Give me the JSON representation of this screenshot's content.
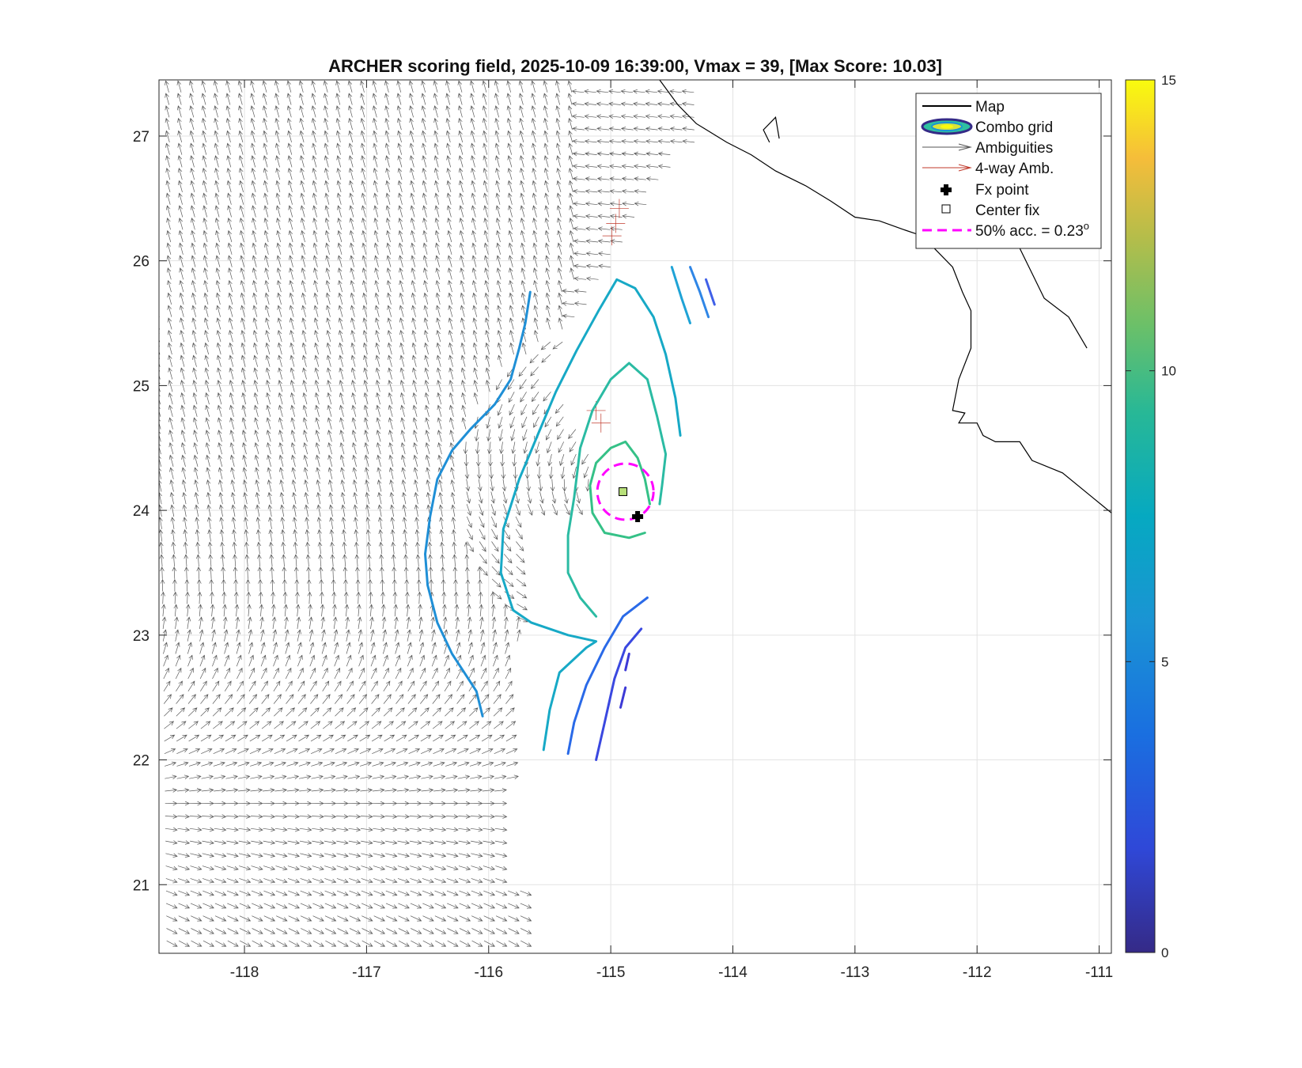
{
  "chart_data": {
    "type": "contour",
    "title": "ARCHER scoring field, 2025-10-09 16:39:00, Vmax = 39, [Max Score: 10.03]",
    "xlim": [
      -118.7,
      -110.9
    ],
    "ylim": [
      20.45,
      27.45
    ],
    "x_ticks": [
      -118,
      -117,
      -116,
      -115,
      -114,
      -113,
      -112,
      -111
    ],
    "y_ticks": [
      21,
      22,
      23,
      24,
      25,
      26,
      27
    ],
    "x_tick_labels": [
      "-118",
      "-117",
      "-116",
      "-115",
      "-114",
      "-113",
      "-112",
      "-111"
    ],
    "y_tick_labels": [
      "21",
      "22",
      "23",
      "24",
      "25",
      "26",
      "27"
    ],
    "grid": true,
    "colorbar": {
      "min": 0,
      "max": 15,
      "ticks": [
        0,
        5,
        10,
        15
      ],
      "tick_labels": [
        "0",
        "5",
        "10",
        "15"
      ]
    },
    "legend": {
      "placement": "top-right",
      "entries": [
        "Map",
        "Combo grid",
        "Ambiguities",
        "4-way Amb.",
        "Fx point",
        "Center fix",
        "50% acc. = 0.23"
      ],
      "superscript": "o"
    },
    "center_fix": {
      "lon": -114.9,
      "lat": 24.15
    },
    "fx_point": {
      "lon": -114.78,
      "lat": 23.95
    },
    "accuracy_circle": {
      "lon": -114.88,
      "lat": 24.15,
      "radius_deg": 0.23
    },
    "contours": [
      {
        "level": 4.2,
        "color": "#1f8fd6",
        "points": [
          [
            -116.05,
            22.35
          ],
          [
            -116.1,
            22.55
          ],
          [
            -116.2,
            22.7
          ],
          [
            -116.3,
            22.85
          ],
          [
            -116.42,
            23.1
          ],
          [
            -116.5,
            23.4
          ],
          [
            -116.52,
            23.65
          ],
          [
            -116.48,
            23.95
          ],
          [
            -116.42,
            24.25
          ],
          [
            -116.3,
            24.48
          ],
          [
            -116.15,
            24.65
          ],
          [
            -115.95,
            24.85
          ],
          [
            -115.82,
            25.05
          ],
          [
            -115.75,
            25.3
          ],
          [
            -115.7,
            25.5
          ],
          [
            -115.66,
            25.75
          ]
        ]
      },
      {
        "level": 6.5,
        "color": "#17a9c6",
        "points": [
          [
            -115.55,
            22.08
          ],
          [
            -115.5,
            22.4
          ],
          [
            -115.42,
            22.7
          ],
          [
            -115.2,
            22.9
          ],
          [
            -115.12,
            22.95
          ],
          [
            -115.35,
            23.0
          ],
          [
            -115.65,
            23.1
          ],
          [
            -115.8,
            23.2
          ],
          [
            -115.9,
            23.5
          ],
          [
            -115.88,
            23.85
          ],
          [
            -115.75,
            24.25
          ],
          [
            -115.6,
            24.6
          ],
          [
            -115.45,
            24.95
          ],
          [
            -115.28,
            25.28
          ],
          [
            -115.1,
            25.6
          ],
          [
            -114.95,
            25.85
          ],
          [
            -114.8,
            25.78
          ],
          [
            -114.65,
            25.55
          ],
          [
            -114.55,
            25.25
          ],
          [
            -114.47,
            24.9
          ],
          [
            -114.43,
            24.6
          ]
        ]
      },
      {
        "level": 8.0,
        "color": "#2bbba3",
        "points": [
          [
            -115.12,
            23.15
          ],
          [
            -115.25,
            23.3
          ],
          [
            -115.35,
            23.5
          ],
          [
            -115.35,
            23.8
          ],
          [
            -115.3,
            24.1
          ],
          [
            -115.25,
            24.5
          ],
          [
            -115.15,
            24.8
          ],
          [
            -115.0,
            25.05
          ],
          [
            -114.85,
            25.18
          ],
          [
            -114.7,
            25.05
          ],
          [
            -114.62,
            24.75
          ],
          [
            -114.55,
            24.45
          ],
          [
            -114.58,
            24.2
          ],
          [
            -114.6,
            24.05
          ]
        ]
      },
      {
        "level": 9.2,
        "color": "#35c187",
        "points": [
          [
            -114.72,
            23.82
          ],
          [
            -114.85,
            23.78
          ],
          [
            -115.05,
            23.82
          ],
          [
            -115.15,
            23.98
          ],
          [
            -115.17,
            24.2
          ],
          [
            -115.12,
            24.38
          ],
          [
            -115.0,
            24.5
          ],
          [
            -114.88,
            24.55
          ],
          [
            -114.78,
            24.42
          ],
          [
            -114.72,
            24.25
          ],
          [
            -114.68,
            24.05
          ]
        ]
      },
      {
        "level": 3.4,
        "color": "#2a6ae8",
        "points": [
          [
            -115.35,
            22.05
          ],
          [
            -115.3,
            22.3
          ],
          [
            -115.2,
            22.6
          ],
          [
            -115.05,
            22.9
          ],
          [
            -114.9,
            23.15
          ],
          [
            -114.7,
            23.3
          ]
        ]
      },
      {
        "level": 2.5,
        "color": "#3a48e0",
        "points": [
          [
            -115.12,
            22.0
          ],
          [
            -115.05,
            22.3
          ],
          [
            -114.97,
            22.65
          ],
          [
            -114.88,
            22.9
          ],
          [
            -114.75,
            23.05
          ]
        ]
      },
      {
        "level": 1.6,
        "color": "#3d3ad6",
        "points": [
          [
            -114.92,
            22.42
          ],
          [
            -114.88,
            22.58
          ]
        ]
      },
      {
        "level": 1.6,
        "color": "#3d3ad6",
        "points": [
          [
            -114.88,
            22.72
          ],
          [
            -114.85,
            22.85
          ]
        ]
      },
      {
        "level": 5.2,
        "color": "#1fa3d6",
        "points": [
          [
            -114.5,
            25.95
          ],
          [
            -114.42,
            25.7
          ],
          [
            -114.35,
            25.5
          ]
        ]
      },
      {
        "level": 4.0,
        "color": "#2f86e6",
        "points": [
          [
            -114.35,
            25.95
          ],
          [
            -114.27,
            25.75
          ],
          [
            -114.2,
            25.55
          ]
        ]
      },
      {
        "level": 3.0,
        "color": "#4060e8",
        "points": [
          [
            -114.22,
            25.85
          ],
          [
            -114.15,
            25.65
          ]
        ]
      }
    ]
  }
}
